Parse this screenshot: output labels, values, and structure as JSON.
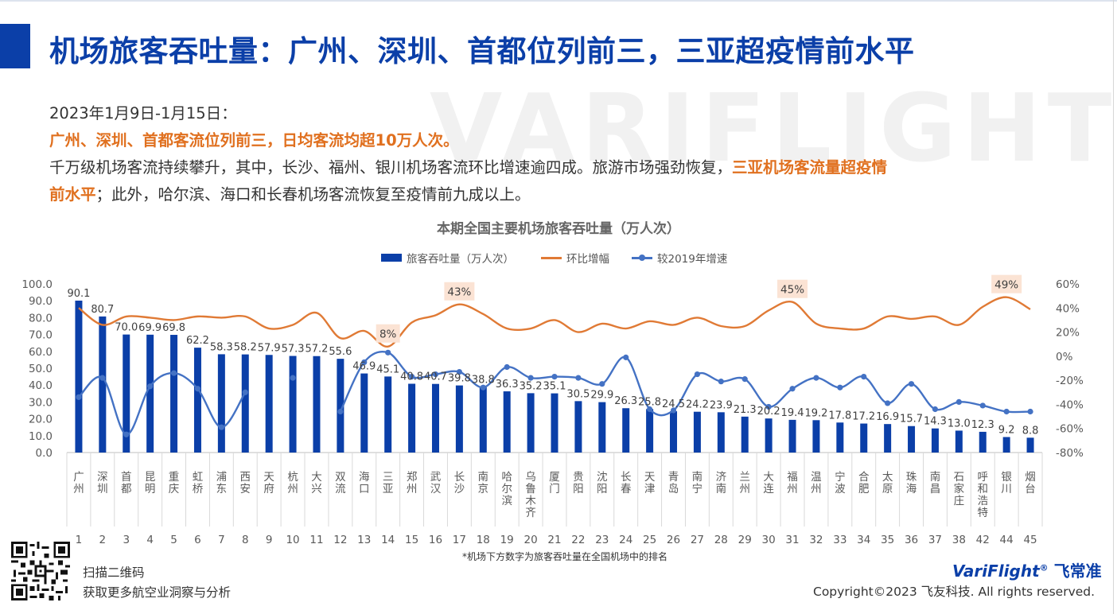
{
  "page": {
    "title": "机场旅客吞吐量：广州、深圳、首都位列前三，三亚超疫情前水平",
    "watermark": "VARIFLIGHT",
    "date_line": "2023年1月9日-1月15日：",
    "highlight_line": "广州、深圳、首都客流位列前三，日均客流均超10万人次。",
    "para_a": "千万级机场客流持续攀升，其中，长沙、福州、银川机场客流环比增速逾四成。旅游市场强劲恢复，",
    "para_b_hl": "三亚机场客流量超疫情",
    "para_c_hl": "前水平",
    "para_d": "；此外，哈尔滨、海口和长春机场客流恢复至疫情前九成以上。",
    "scan_line1": "扫描二维码",
    "scan_line2": "获取更多航空业洞察与分析",
    "brand_en": "VariFlight",
    "brand_reg": "®",
    "brand_cn": "飞常准",
    "copyright": "Copyright©2023 飞友科技. All rights reserved.",
    "footnote": "*机场下方数字为旅客吞吐量在全国机场中的排名"
  },
  "chart_data": {
    "type": "bar",
    "title": "本期全国主要机场旅客吞吐量（万人次）",
    "categories": [
      "广州",
      "深圳",
      "首都",
      "昆明",
      "重庆",
      "虹桥",
      "浦东",
      "西安",
      "天府",
      "杭州",
      "大兴",
      "双流",
      "海口",
      "三亚",
      "郑州",
      "武汉",
      "长沙",
      "南京",
      "哈尔滨",
      "乌鲁木齐",
      "厦门",
      "贵阳",
      "沈阳",
      "长春",
      "天津",
      "青岛",
      "南宁",
      "济南",
      "兰州",
      "大连",
      "福州",
      "温州",
      "宁波",
      "合肥",
      "太原",
      "珠海",
      "南昌",
      "石家庄",
      "呼和浩特",
      "银川",
      "烟台"
    ],
    "ranks": [
      "1",
      "2",
      "3",
      "4",
      "5",
      "6",
      "7",
      "8",
      "9",
      "10",
      "11",
      "12",
      "13",
      "14",
      "15",
      "16",
      "17",
      "18",
      "19",
      "20",
      "21",
      "22",
      "23",
      "24",
      "25",
      "26",
      "27",
      "28",
      "29",
      "30",
      "31",
      "32",
      "33",
      "34",
      "35",
      "36",
      "37",
      "38",
      "42",
      "44",
      "45"
    ],
    "series": [
      {
        "name": "旅客吞吐量（万人次）",
        "axis": "left",
        "color": "#0b3fa8",
        "values": [
          90.1,
          80.7,
          70.0,
          69.9,
          69.8,
          62.2,
          58.3,
          58.2,
          57.9,
          57.3,
          57.2,
          55.6,
          46.9,
          45.1,
          40.8,
          40.7,
          39.8,
          38.8,
          36.3,
          35.2,
          35.1,
          30.5,
          29.9,
          26.3,
          25.8,
          24.5,
          24.2,
          23.9,
          21.3,
          20.2,
          19.4,
          19.2,
          17.8,
          17.2,
          16.9,
          15.7,
          14.3,
          13.0,
          12.3,
          9.2,
          8.8
        ],
        "labels": [
          "90.1",
          "80.7",
          "70.0",
          "69.9",
          "69.8",
          "62.2",
          "58.3",
          "58.2",
          "57.9",
          "57.3",
          "57.2",
          "55.6",
          "46.9",
          "45.1",
          "40.8",
          "40.7",
          "39.8",
          "38.8",
          "36.3",
          "35.2",
          "35.1",
          "30.5",
          "29.9",
          "26.3",
          "25.8",
          "24.5",
          "24.2",
          "23.9",
          "21.3",
          "20.2",
          "19.4",
          "19.2",
          "17.8",
          "17.2",
          "16.9",
          "15.7",
          "14.3",
          "13.0",
          "12.3",
          "9.2",
          "8.8"
        ]
      },
      {
        "name": "环比增幅",
        "axis": "right",
        "color": "#e07a35",
        "values": [
          40,
          26,
          33,
          32,
          30,
          33,
          32,
          33,
          23,
          26,
          36,
          15,
          21,
          8,
          28,
          34,
          43,
          35,
          23,
          23,
          30,
          20,
          27,
          23,
          29,
          26,
          32,
          25,
          25,
          38,
          45,
          27,
          23,
          23,
          33,
          31,
          33,
          26,
          41,
          49,
          39
        ]
      },
      {
        "name": "较2019年增速",
        "axis": "right",
        "color": "#4472c4",
        "values": [
          -34,
          -18,
          -65,
          -25,
          -14,
          -27,
          -59,
          -30,
          null,
          -18,
          null,
          -46,
          -5,
          3,
          -17,
          -15,
          -13,
          -26,
          -9,
          -18,
          -17,
          -18,
          -23,
          -1,
          -44,
          -45,
          -15,
          -21,
          -19,
          -42,
          -27,
          -18,
          -26,
          -17,
          -39,
          -23,
          -44,
          -38,
          -41,
          -46,
          -46
        ]
      }
    ],
    "callouts": [
      {
        "series": "环比增幅",
        "index": 13,
        "text": "8%"
      },
      {
        "series": "环比增幅",
        "index": 16,
        "text": "43%"
      },
      {
        "series": "环比增幅",
        "index": 30,
        "text": "45%"
      },
      {
        "series": "环比增幅",
        "index": 39,
        "text": "49%"
      }
    ],
    "left_axis": {
      "min": 0,
      "max": 100,
      "step": 10,
      "ticks": [
        "0.0",
        "10.0",
        "20.0",
        "30.0",
        "40.0",
        "50.0",
        "60.0",
        "70.0",
        "80.0",
        "90.0",
        "100.0"
      ]
    },
    "right_axis": {
      "min": -80,
      "max": 60,
      "step": 20,
      "ticks": [
        "-80%",
        "-60%",
        "-40%",
        "-20%",
        "0%",
        "20%",
        "40%",
        "60%"
      ]
    },
    "grid": false,
    "legend_position": "top-center"
  }
}
